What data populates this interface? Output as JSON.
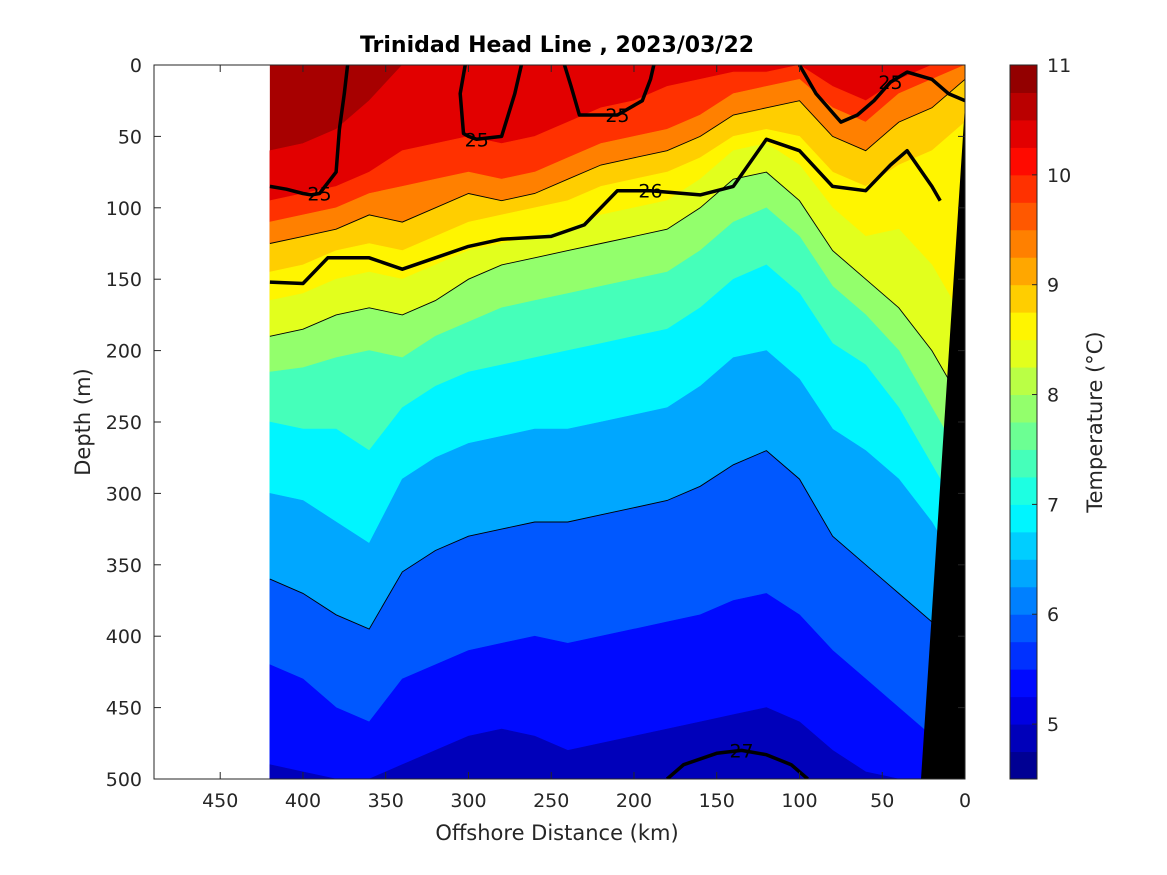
{
  "chart_data": {
    "type": "heatmap",
    "title": "Trinidad Head Line , 2023/03/22",
    "xlabel": "Offshore Distance (km)",
    "ylabel": "Depth (m)",
    "colorbar_label": "Temperature (°C)",
    "xlim": [
      490,
      0
    ],
    "x_reversed": true,
    "ylim": [
      0,
      500
    ],
    "y_reversed": true,
    "x_ticks": [
      450,
      400,
      350,
      300,
      250,
      200,
      150,
      100,
      50,
      0
    ],
    "y_ticks": [
      0,
      50,
      100,
      150,
      200,
      250,
      300,
      350,
      400,
      450,
      500
    ],
    "colorbar_range": [
      4.5,
      11
    ],
    "colorbar_step": 0.25,
    "colorbar_ticks": [
      5,
      6,
      7,
      8,
      9,
      10,
      11
    ],
    "colormap": "jet",
    "grid": false,
    "data_extent_x": [
      0,
      420
    ],
    "station_x": [
      420,
      400,
      380,
      360,
      340,
      320,
      300,
      280,
      260,
      240,
      220,
      200,
      180,
      160,
      140,
      120,
      100,
      80,
      60,
      40,
      20,
      0
    ],
    "temperature_isotherm_depths": [
      {
        "temperature": 10.5,
        "depths": [
          60,
          55,
          45,
          25,
          0,
          0,
          0,
          0,
          0,
          0,
          0,
          0,
          0,
          0,
          0,
          0,
          0,
          0,
          0,
          0,
          0,
          0
        ]
      },
      {
        "temperature": 10.0,
        "depths": [
          95,
          90,
          85,
          75,
          60,
          55,
          50,
          55,
          50,
          40,
          30,
          25,
          15,
          10,
          5,
          5,
          0,
          15,
          25,
          10,
          0,
          0
        ]
      },
      {
        "temperature": 9.5,
        "depths": [
          110,
          105,
          100,
          90,
          85,
          80,
          75,
          80,
          75,
          65,
          55,
          50,
          45,
          35,
          20,
          15,
          10,
          30,
          40,
          20,
          10,
          0
        ]
      },
      {
        "temperature": 9.0,
        "depths": [
          125,
          120,
          115,
          105,
          110,
          100,
          90,
          95,
          90,
          80,
          70,
          65,
          60,
          50,
          35,
          30,
          25,
          50,
          60,
          40,
          30,
          10
        ]
      },
      {
        "temperature": 8.75,
        "depths": [
          145,
          140,
          130,
          125,
          130,
          120,
          110,
          105,
          100,
          95,
          85,
          80,
          75,
          65,
          50,
          45,
          50,
          75,
          85,
          70,
          60,
          40
        ]
      },
      {
        "temperature": 8.5,
        "depths": [
          165,
          160,
          150,
          145,
          150,
          140,
          130,
          125,
          120,
          115,
          105,
          100,
          95,
          80,
          60,
          55,
          70,
          100,
          120,
          115,
          140,
          180
        ]
      },
      {
        "temperature": 8.0,
        "depths": [
          190,
          185,
          175,
          170,
          175,
          165,
          150,
          140,
          135,
          130,
          125,
          120,
          115,
          100,
          80,
          75,
          95,
          130,
          150,
          170,
          200,
          240
        ]
      },
      {
        "temperature": 7.5,
        "depths": [
          215,
          212,
          205,
          200,
          205,
          190,
          180,
          170,
          165,
          160,
          155,
          150,
          145,
          130,
          110,
          100,
          120,
          155,
          175,
          200,
          240,
          280
        ]
      },
      {
        "temperature": 7.0,
        "depths": [
          250,
          255,
          255,
          270,
          240,
          225,
          215,
          210,
          205,
          200,
          195,
          190,
          185,
          170,
          150,
          140,
          160,
          195,
          210,
          240,
          280,
          320
        ]
      },
      {
        "temperature": 6.5,
        "depths": [
          300,
          305,
          320,
          335,
          290,
          275,
          265,
          260,
          255,
          255,
          250,
          245,
          240,
          225,
          205,
          200,
          220,
          255,
          270,
          290,
          320,
          360
        ]
      },
      {
        "temperature": 6.0,
        "depths": [
          360,
          370,
          385,
          395,
          355,
          340,
          330,
          325,
          320,
          320,
          315,
          310,
          305,
          295,
          280,
          270,
          290,
          330,
          350,
          370,
          390,
          420
        ]
      },
      {
        "temperature": 5.5,
        "depths": [
          420,
          430,
          450,
          460,
          430,
          420,
          410,
          405,
          400,
          405,
          400,
          395,
          390,
          385,
          375,
          370,
          385,
          410,
          430,
          450,
          470,
          490
        ]
      },
      {
        "temperature": 5.0,
        "depths": [
          490,
          495,
          500,
          500,
          490,
          480,
          470,
          465,
          470,
          480,
          475,
          470,
          465,
          460,
          455,
          450,
          460,
          480,
          495,
          500,
          500,
          500
        ]
      }
    ],
    "density_contours": [
      {
        "label": "25",
        "x": [
          420,
          410,
          400,
          395,
          390,
          380,
          378,
          375,
          373
        ],
        "depth": [
          85,
          87,
          90,
          91,
          90,
          75,
          45,
          20,
          0
        ],
        "bold": true
      },
      {
        "label": "25",
        "x": [
          302,
          305,
          303,
          300,
          295,
          280,
          272,
          268
        ],
        "depth": [
          0,
          20,
          48,
          50,
          52,
          50,
          20,
          0
        ],
        "bold": true
      },
      {
        "label": "25",
        "x": [
          242,
          238,
          233,
          210,
          195,
          190,
          188
        ],
        "depth": [
          0,
          15,
          35,
          35,
          25,
          10,
          0
        ],
        "bold": true
      },
      {
        "label": "25",
        "x": [
          100,
          90,
          75,
          65,
          55,
          45,
          35,
          20,
          10,
          0
        ],
        "depth": [
          0,
          20,
          40,
          35,
          25,
          12,
          5,
          10,
          20,
          25
        ],
        "bold": true
      },
      {
        "label": "26",
        "x": [
          420,
          400,
          385,
          360,
          340,
          320,
          300,
          280,
          250,
          230,
          210,
          190,
          160,
          140,
          120,
          100,
          80,
          60,
          45,
          35,
          20,
          15
        ],
        "depth": [
          152,
          153,
          135,
          135,
          143,
          135,
          127,
          122,
          120,
          112,
          88,
          88,
          91,
          85,
          52,
          60,
          85,
          88,
          70,
          60,
          85,
          95
        ],
        "bold": true
      },
      {
        "label": "27",
        "x": [
          180,
          170,
          150,
          135,
          120,
          105,
          95
        ],
        "depth": [
          500,
          490,
          482,
          480,
          483,
          490,
          500
        ],
        "bold": true
      }
    ]
  }
}
